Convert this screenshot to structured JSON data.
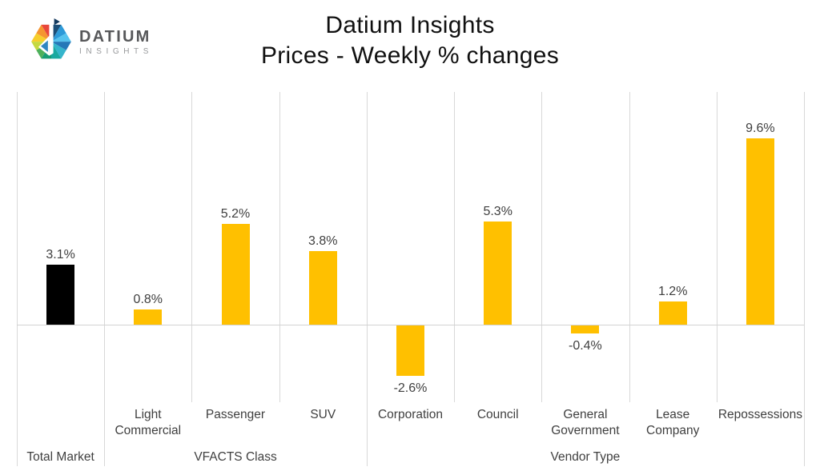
{
  "logo": {
    "brand": "DATIUM",
    "sub": "INSIGHTS"
  },
  "title": {
    "line1": "Datium Insights",
    "line2": "Prices - Weekly % changes"
  },
  "colors": {
    "accent_yellow": "#FFC000",
    "total_market_black": "#000000",
    "gridline": "#D8D8D8",
    "label_text": "#3F3F3F"
  },
  "chart_data": {
    "type": "bar",
    "title": "Datium Insights Prices - Weekly % changes",
    "categories": [
      "Total Market",
      "Light Commercial",
      "Passenger",
      "SUV",
      "Corporation",
      "Council",
      "General Government",
      "Lease Company",
      "Repossessions"
    ],
    "values": [
      3.1,
      0.8,
      5.2,
      3.8,
      -2.6,
      5.3,
      -0.4,
      1.2,
      9.6
    ],
    "value_labels": [
      "3.1%",
      "0.8%",
      "5.2%",
      "3.8%",
      "-2.6%",
      "5.3%",
      "-0.4%",
      "1.2%",
      "9.6%"
    ],
    "bar_colors": [
      "#000000",
      "#FFC000",
      "#FFC000",
      "#FFC000",
      "#FFC000",
      "#FFC000",
      "#FFC000",
      "#FFC000",
      "#FFC000"
    ],
    "xlabel": "",
    "ylabel": "",
    "ylim": [
      -4,
      12
    ],
    "y_axis_visible": false,
    "legend": "none",
    "gridlines": "vertical-category-separators-only",
    "axis": {
      "member_labels": [
        "",
        "Light Commercial",
        "Passenger",
        "SUV",
        "Corporation",
        "Council",
        "General Government",
        "Lease Company",
        "Repossessions"
      ],
      "group_labels": [
        {
          "label": "Total Market",
          "start": 0,
          "end": 0
        },
        {
          "label": "VFACTS Class",
          "start": 1,
          "end": 3
        },
        {
          "label": "Vendor Type",
          "start": 4,
          "end": 8
        }
      ]
    }
  }
}
